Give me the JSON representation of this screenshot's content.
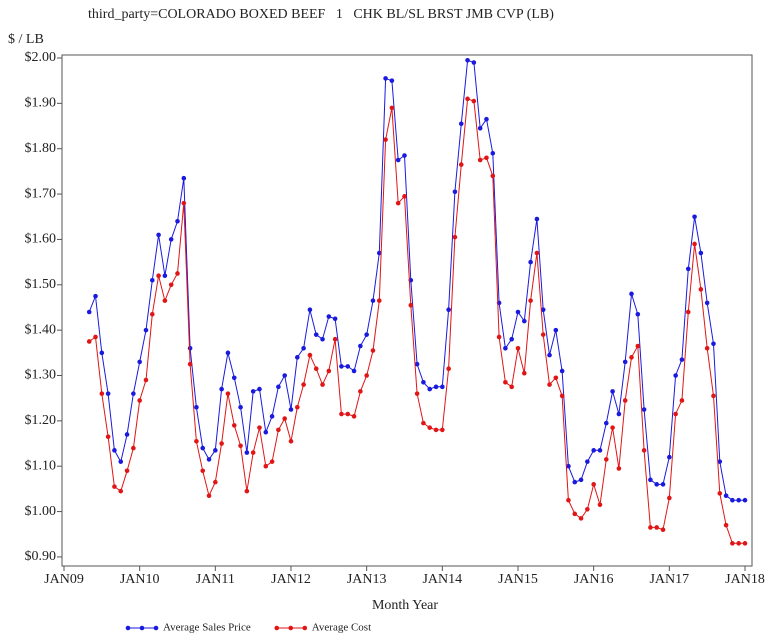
{
  "chart_data": {
    "type": "line",
    "title": "third_party=COLORADO BOXED BEEF   1   CHK BL/SL BRST JMB CVP (LB)",
    "y_label": "$ / LB",
    "x_label": "Month Year",
    "x": [
      "2009-05",
      "2009-06",
      "2009-07",
      "2009-08",
      "2009-09",
      "2009-10",
      "2009-11",
      "2009-12",
      "2010-01",
      "2010-02",
      "2010-03",
      "2010-04",
      "2010-05",
      "2010-06",
      "2010-07",
      "2010-08",
      "2010-09",
      "2010-10",
      "2010-11",
      "2010-12",
      "2011-01",
      "2011-02",
      "2011-03",
      "2011-04",
      "2011-05",
      "2011-06",
      "2011-07",
      "2011-08",
      "2011-09",
      "2011-10",
      "2011-11",
      "2011-12",
      "2012-01",
      "2012-02",
      "2012-03",
      "2012-04",
      "2012-05",
      "2012-06",
      "2012-07",
      "2012-08",
      "2012-09",
      "2012-10",
      "2012-11",
      "2012-12",
      "2013-01",
      "2013-02",
      "2013-03",
      "2013-04",
      "2013-05",
      "2013-06",
      "2013-07",
      "2013-08",
      "2013-09",
      "2013-10",
      "2013-11",
      "2013-12",
      "2014-01",
      "2014-02",
      "2014-03",
      "2014-04",
      "2014-05",
      "2014-06",
      "2014-07",
      "2014-08",
      "2014-09",
      "2014-10",
      "2014-11",
      "2014-12",
      "2015-01",
      "2015-02",
      "2015-03",
      "2015-04",
      "2015-05",
      "2015-06",
      "2015-07",
      "2015-08",
      "2015-09",
      "2015-10",
      "2015-11",
      "2015-12",
      "2016-01",
      "2016-02",
      "2016-03",
      "2016-04",
      "2016-05",
      "2016-06",
      "2016-07",
      "2016-08",
      "2016-09",
      "2016-10",
      "2016-11",
      "2016-12",
      "2017-01",
      "2017-02",
      "2017-03",
      "2017-04",
      "2017-05",
      "2017-06",
      "2017-07",
      "2017-08",
      "2017-09",
      "2017-10",
      "2017-11",
      "2017-12",
      "2018-01"
    ],
    "series": [
      {
        "name": "Average Sales Price",
        "color": "#1a1adf",
        "values": [
          1.44,
          1.475,
          1.35,
          1.26,
          1.135,
          1.11,
          1.17,
          1.26,
          1.33,
          1.4,
          1.51,
          1.61,
          1.52,
          1.6,
          1.64,
          1.735,
          1.36,
          1.23,
          1.14,
          1.115,
          1.135,
          1.27,
          1.35,
          1.295,
          1.23,
          1.13,
          1.265,
          1.27,
          1.175,
          1.21,
          1.275,
          1.3,
          1.225,
          1.34,
          1.36,
          1.445,
          1.39,
          1.38,
          1.43,
          1.425,
          1.32,
          1.32,
          1.31,
          1.365,
          1.39,
          1.465,
          1.57,
          1.955,
          1.95,
          1.775,
          1.785,
          1.51,
          1.325,
          1.285,
          1.27,
          1.275,
          1.275,
          1.445,
          1.705,
          1.855,
          1.995,
          1.99,
          1.845,
          1.865,
          1.79,
          1.46,
          1.36,
          1.38,
          1.44,
          1.42,
          1.55,
          1.645,
          1.445,
          1.345,
          1.4,
          1.31,
          1.1,
          1.065,
          1.07,
          1.11,
          1.135,
          1.135,
          1.195,
          1.265,
          1.215,
          1.33,
          1.48,
          1.435,
          1.225,
          1.07,
          1.06,
          1.06,
          1.12,
          1.3,
          1.335,
          1.535,
          1.65,
          1.57,
          1.46,
          1.37,
          1.11,
          1.035,
          1.025,
          1.025,
          1.025
        ]
      },
      {
        "name": "Average Cost",
        "color": "#e01616",
        "values": [
          1.375,
          1.385,
          1.26,
          1.165,
          1.055,
          1.045,
          1.09,
          1.14,
          1.245,
          1.29,
          1.435,
          1.52,
          1.465,
          1.5,
          1.525,
          1.68,
          1.325,
          1.155,
          1.09,
          1.035,
          1.065,
          1.15,
          1.26,
          1.19,
          1.145,
          1.045,
          1.13,
          1.185,
          1.1,
          1.11,
          1.18,
          1.205,
          1.155,
          1.23,
          1.28,
          1.345,
          1.315,
          1.28,
          1.31,
          1.38,
          1.215,
          1.215,
          1.21,
          1.265,
          1.3,
          1.355,
          1.465,
          1.82,
          1.89,
          1.68,
          1.695,
          1.455,
          1.26,
          1.195,
          1.185,
          1.18,
          1.18,
          1.315,
          1.605,
          1.765,
          1.91,
          1.905,
          1.775,
          1.78,
          1.74,
          1.385,
          1.285,
          1.275,
          1.36,
          1.305,
          1.465,
          1.57,
          1.39,
          1.28,
          1.295,
          1.255,
          1.025,
          0.995,
          0.985,
          1.005,
          1.06,
          1.015,
          1.115,
          1.185,
          1.095,
          1.245,
          1.34,
          1.365,
          1.135,
          0.965,
          0.965,
          0.96,
          1.03,
          1.215,
          1.245,
          1.44,
          1.59,
          1.49,
          1.36,
          1.255,
          1.04,
          0.97,
          0.93,
          0.93,
          0.93
        ]
      }
    ],
    "ylim": [
      0.88,
      2.0
    ],
    "yticks": [
      {
        "value": 0.9,
        "label": "$0.90"
      },
      {
        "value": 1.0,
        "label": "$1.00"
      },
      {
        "value": 1.1,
        "label": "$1.10"
      },
      {
        "value": 1.2,
        "label": "$1.20"
      },
      {
        "value": 1.3,
        "label": "$1.30"
      },
      {
        "value": 1.4,
        "label": "$1.40"
      },
      {
        "value": 1.5,
        "label": "$1.50"
      },
      {
        "value": 1.6,
        "label": "$1.60"
      },
      {
        "value": 1.7,
        "label": "$1.70"
      },
      {
        "value": 1.8,
        "label": "$1.80"
      },
      {
        "value": 1.9,
        "label": "$1.90"
      },
      {
        "value": 2.0,
        "label": "$2.00"
      }
    ],
    "xlim": [
      "2009-01",
      "2018-01"
    ],
    "xticks": [
      {
        "value": "2009-01",
        "label": "JAN09"
      },
      {
        "value": "2010-01",
        "label": "JAN10"
      },
      {
        "value": "2011-01",
        "label": "JAN11"
      },
      {
        "value": "2012-01",
        "label": "JAN12"
      },
      {
        "value": "2013-01",
        "label": "JAN13"
      },
      {
        "value": "2014-01",
        "label": "JAN14"
      },
      {
        "value": "2015-01",
        "label": "JAN15"
      },
      {
        "value": "2016-01",
        "label": "JAN16"
      },
      {
        "value": "2017-01",
        "label": "JAN17"
      },
      {
        "value": "2018-01",
        "label": "JAN18"
      }
    ],
    "grid": false,
    "legend": "bottom"
  }
}
